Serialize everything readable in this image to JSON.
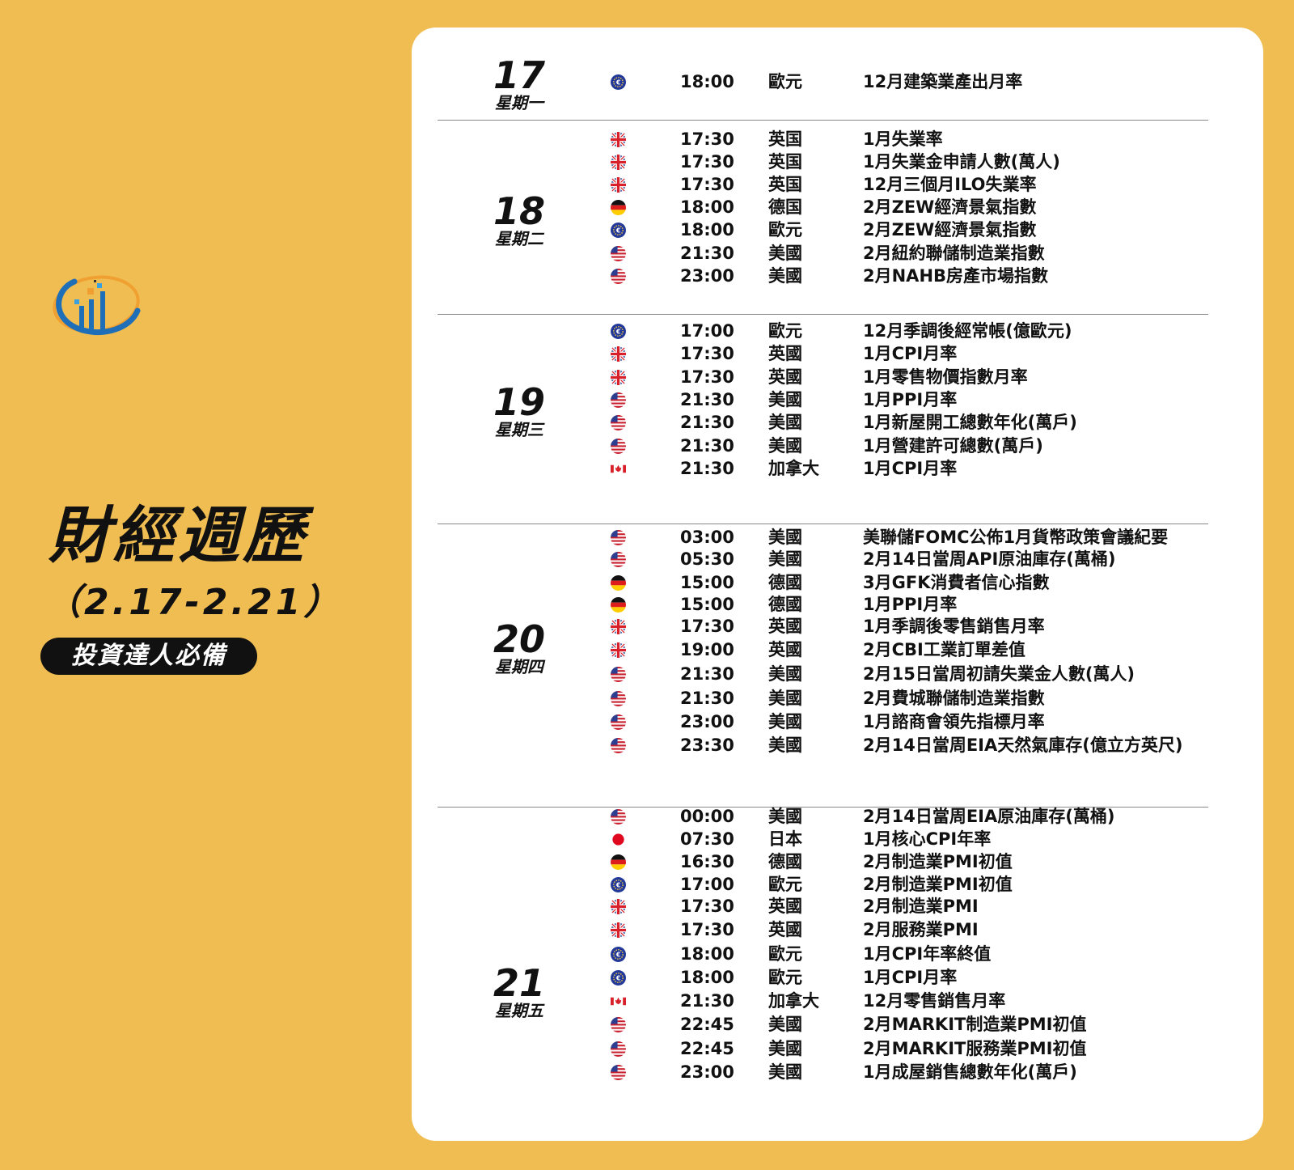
{
  "header": {
    "title": "財經週歷",
    "date_range": "（2.17-2.21）",
    "tagline": "投資達人必備"
  },
  "colors": {
    "background": "#f0bd52",
    "card": "#ffffff",
    "tag_bg": "#111111"
  },
  "days": [
    {
      "day": "17",
      "weekday": "星期一",
      "events": [
        {
          "flag": "eu-flag-icon",
          "time": "18:00",
          "country": "歐元",
          "event": "12月建築業產出月率"
        }
      ]
    },
    {
      "day": "18",
      "weekday": "星期二",
      "events": [
        {
          "flag": "uk-flag-icon",
          "time": "17:30",
          "country": "英国",
          "event": "1月失業率"
        },
        {
          "flag": "uk-flag-icon",
          "time": "17:30",
          "country": "英国",
          "event": "1月失業金申請人數(萬人)"
        },
        {
          "flag": "uk-flag-icon",
          "time": "17:30",
          "country": "英国",
          "event": "12月三個月ILO失業率"
        },
        {
          "flag": "de-flag-icon",
          "time": "18:00",
          "country": "德国",
          "event": "2月ZEW經濟景氣指數"
        },
        {
          "flag": "eu-flag-icon",
          "time": "18:00",
          "country": "歐元",
          "event": "2月ZEW經濟景氣指數"
        },
        {
          "flag": "us-flag-icon",
          "time": "21:30",
          "country": "美國",
          "event": "2月紐約聯儲制造業指數"
        },
        {
          "flag": "us-flag-icon",
          "time": "23:00",
          "country": "美國",
          "event": "2月NAHB房產市場指數"
        }
      ]
    },
    {
      "day": "19",
      "weekday": "星期三",
      "events": [
        {
          "flag": "eu-flag-icon",
          "time": "17:00",
          "country": "歐元",
          "event": "12月季調後經常帳(億歐元)"
        },
        {
          "flag": "uk-flag-icon",
          "time": "17:30",
          "country": "英國",
          "event": "1月CPI月率"
        },
        {
          "flag": "uk-flag-icon",
          "time": "17:30",
          "country": "英國",
          "event": "1月零售物價指數月率"
        },
        {
          "flag": "us-flag-icon",
          "time": "21:30",
          "country": "美國",
          "event": "1月PPI月率"
        },
        {
          "flag": "us-flag-icon",
          "time": "21:30",
          "country": "美國",
          "event": "1月新屋開工總數年化(萬戶)"
        },
        {
          "flag": "us-flag-icon",
          "time": "21:30",
          "country": "美國",
          "event": "1月營建許可總數(萬戶)"
        },
        {
          "flag": "ca-flag-icon",
          "time": "21:30",
          "country": "加拿大",
          "event": "1月CPI月率"
        }
      ]
    },
    {
      "day": "20",
      "weekday": "星期四",
      "events": [
        {
          "flag": "us-flag-icon",
          "time": "03:00",
          "country": "美國",
          "event": "美聯儲FOMC公佈1月貨幣政策會議紀要"
        },
        {
          "flag": "us-flag-icon",
          "time": "05:30",
          "country": "美國",
          "event": "2月14日當周API原油庫存(萬桶)"
        },
        {
          "flag": "de-flag-icon",
          "time": "15:00",
          "country": "德國",
          "event": "3月GFK消費者信心指數"
        },
        {
          "flag": "de-flag-icon",
          "time": "15:00",
          "country": "德國",
          "event": "1月PPI月率"
        },
        {
          "flag": "uk-flag-icon",
          "time": "17:30",
          "country": "英國",
          "event": "1月季調後零售銷售月率"
        },
        {
          "flag": "uk-flag-icon",
          "time": "19:00",
          "country": "英國",
          "event": "2月CBI工業訂單差值"
        },
        {
          "flag": "us-flag-icon",
          "time": "21:30",
          "country": "美國",
          "event": "2月15日當周初請失業金人數(萬人)"
        },
        {
          "flag": "us-flag-icon",
          "time": "21:30",
          "country": "美國",
          "event": "2月費城聯儲制造業指數"
        },
        {
          "flag": "us-flag-icon",
          "time": "23:00",
          "country": "美國",
          "event": "1月諮商會領先指標月率"
        },
        {
          "flag": "us-flag-icon",
          "time": "23:30",
          "country": "美國",
          "event": "2月14日當周EIA天然氣庫存(億立方英尺)"
        }
      ]
    },
    {
      "day": "21",
      "weekday": "星期五",
      "events": [
        {
          "flag": "us-flag-icon",
          "time": "00:00",
          "country": "美國",
          "event": "2月14日當周EIA原油庫存(萬桶)"
        },
        {
          "flag": "jp-flag-icon",
          "time": "07:30",
          "country": "日本",
          "event": "1月核心CPI年率"
        },
        {
          "flag": "de-flag-icon",
          "time": "16:30",
          "country": "德國",
          "event": "2月制造業PMI初值"
        },
        {
          "flag": "eu-flag-icon",
          "time": "17:00",
          "country": "歐元",
          "event": "2月制造業PMI初值"
        },
        {
          "flag": "uk-flag-icon",
          "time": "17:30",
          "country": "英國",
          "event": "2月制造業PMI"
        },
        {
          "flag": "uk-flag-icon",
          "time": "17:30",
          "country": "英國",
          "event": "2月服務業PMI"
        },
        {
          "flag": "eu-flag-icon",
          "time": "18:00",
          "country": "歐元",
          "event": "1月CPI年率終值"
        },
        {
          "flag": "eu-flag-icon",
          "time": "18:00",
          "country": "歐元",
          "event": "1月CPI月率"
        },
        {
          "flag": "ca-flag-icon",
          "time": "21:30",
          "country": "加拿大",
          "event": "12月零售銷售月率"
        },
        {
          "flag": "us-flag-icon",
          "time": "22:45",
          "country": "美國",
          "event": "2月MARKIT制造業PMI初值"
        },
        {
          "flag": "us-flag-icon",
          "time": "22:45",
          "country": "美國",
          "event": "2月MARKIT服務業PMI初值"
        },
        {
          "flag": "us-flag-icon",
          "time": "23:00",
          "country": "美國",
          "event": "1月成屋銷售總數年化(萬戶)"
        }
      ]
    }
  ]
}
